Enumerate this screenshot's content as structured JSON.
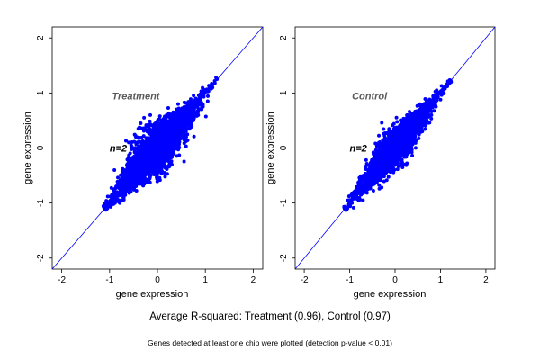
{
  "figure": {
    "caption": "Average R-squared: Treatment (0.96), Control (0.97)",
    "footnote": "Genes detected at least one chip were plotted (detection p-value < 0.01)"
  },
  "colors": {
    "points": "#0000ff",
    "diagonal": "#0000ff",
    "panel_label": "#5a5a5a",
    "axes": "#000000"
  },
  "chart_data": [
    {
      "type": "scatter",
      "title": "",
      "panel_label": "Treatment",
      "n_label": "n=2",
      "xlabel": "gene expression",
      "ylabel": "gene expression",
      "xlim": [
        -2.2,
        2.2
      ],
      "ylim": [
        -2.2,
        2.2
      ],
      "xticks": [
        "-2",
        "-1",
        "0",
        "1",
        "2"
      ],
      "yticks": [
        "-2",
        "-1",
        "0",
        "1",
        "2"
      ],
      "grid": false,
      "reference_line": {
        "slope": 1,
        "intercept": 0
      },
      "point_cloud": {
        "x_range": [
          -1.1,
          1.25
        ],
        "y_range": [
          -1.1,
          1.22
        ],
        "spread_sd": 0.13,
        "center": [
          0,
          0
        ]
      },
      "points": [
        [
          -1.08,
          -1.09
        ],
        [
          -1.05,
          -1.1
        ],
        [
          -0.98,
          -0.95
        ],
        [
          -0.92,
          -1.02
        ],
        [
          -0.9,
          -0.86
        ],
        [
          -0.85,
          -0.7
        ],
        [
          -0.8,
          -0.95
        ],
        [
          -0.75,
          -0.55
        ],
        [
          -0.72,
          -0.85
        ],
        [
          -0.7,
          -0.4
        ],
        [
          -0.65,
          -0.78
        ],
        [
          -0.6,
          -0.25
        ],
        [
          -0.58,
          -0.7
        ],
        [
          -0.55,
          0.05
        ],
        [
          -0.5,
          -0.6
        ],
        [
          -0.45,
          0.2
        ],
        [
          -0.42,
          -0.5
        ],
        [
          -0.4,
          0.35
        ],
        [
          -0.38,
          -0.62
        ],
        [
          -0.35,
          0.45
        ],
        [
          -0.3,
          -0.4
        ],
        [
          -0.28,
          0.55
        ],
        [
          -0.25,
          -0.45
        ],
        [
          -0.2,
          0.3
        ],
        [
          -0.18,
          -0.35
        ],
        [
          -0.15,
          0.6
        ],
        [
          -0.1,
          -0.3
        ],
        [
          -0.05,
          0.2
        ],
        [
          0.0,
          -0.25
        ],
        [
          0.0,
          0.02
        ],
        [
          0.05,
          0.4
        ],
        [
          0.1,
          -0.2
        ],
        [
          0.12,
          0.5
        ],
        [
          0.15,
          -0.1
        ],
        [
          0.2,
          0.45
        ],
        [
          0.25,
          -0.15
        ],
        [
          0.3,
          0.6
        ],
        [
          0.35,
          0.05
        ],
        [
          0.4,
          0.55
        ],
        [
          0.45,
          0.1
        ],
        [
          0.5,
          0.7
        ],
        [
          0.55,
          0.3
        ],
        [
          0.6,
          0.75
        ],
        [
          0.65,
          0.35
        ],
        [
          0.7,
          0.85
        ],
        [
          0.75,
          0.5
        ],
        [
          0.8,
          0.9
        ],
        [
          0.85,
          0.6
        ],
        [
          0.9,
          0.95
        ],
        [
          0.95,
          0.75
        ],
        [
          1.0,
          1.02
        ],
        [
          1.05,
          0.85
        ],
        [
          1.1,
          1.12
        ],
        [
          1.15,
          1.1
        ],
        [
          1.2,
          1.18
        ],
        [
          -0.9,
          -0.4
        ],
        [
          -0.6,
          0.1
        ],
        [
          -0.3,
          0.1
        ],
        [
          0.3,
          -0.3
        ],
        [
          0.6,
          0.2
        ]
      ]
    },
    {
      "type": "scatter",
      "title": "",
      "panel_label": "Control",
      "n_label": "n=2",
      "xlabel": "gene expression",
      "ylabel": "gene expression",
      "xlim": [
        -2.2,
        2.2
      ],
      "ylim": [
        -2.2,
        2.2
      ],
      "xticks": [
        "-2",
        "-1",
        "0",
        "1",
        "2"
      ],
      "yticks": [
        "-2",
        "-1",
        "0",
        "1",
        "2"
      ],
      "grid": false,
      "reference_line": {
        "slope": 1,
        "intercept": 0
      },
      "point_cloud": {
        "x_range": [
          -1.1,
          1.22
        ],
        "y_range": [
          -1.1,
          1.2
        ],
        "spread_sd": 0.1,
        "center": [
          0,
          0
        ]
      },
      "points": [
        [
          -1.08,
          -1.08
        ],
        [
          -1.05,
          -1.1
        ],
        [
          -1.0,
          -0.95
        ],
        [
          -0.95,
          -1.0
        ],
        [
          -0.9,
          -0.8
        ],
        [
          -0.85,
          -0.92
        ],
        [
          -0.8,
          -0.65
        ],
        [
          -0.75,
          -0.85
        ],
        [
          -0.7,
          -0.5
        ],
        [
          -0.65,
          -0.8
        ],
        [
          -0.6,
          -0.4
        ],
        [
          -0.55,
          -0.7
        ],
        [
          -0.5,
          -0.3
        ],
        [
          -0.45,
          -0.6
        ],
        [
          -0.4,
          -0.2
        ],
        [
          -0.35,
          -0.5
        ],
        [
          -0.3,
          -0.1
        ],
        [
          -0.25,
          -0.4
        ],
        [
          -0.2,
          0.05
        ],
        [
          -0.15,
          -0.3
        ],
        [
          -0.1,
          0.15
        ],
        [
          -0.05,
          -0.2
        ],
        [
          0.0,
          0.0
        ],
        [
          0.05,
          0.25
        ],
        [
          0.1,
          -0.1
        ],
        [
          0.15,
          0.35
        ],
        [
          0.2,
          0.0
        ],
        [
          0.25,
          0.45
        ],
        [
          0.3,
          0.1
        ],
        [
          0.35,
          0.5
        ],
        [
          0.4,
          0.2
        ],
        [
          0.45,
          0.6
        ],
        [
          0.5,
          0.3
        ],
        [
          0.55,
          0.7
        ],
        [
          0.6,
          0.4
        ],
        [
          0.65,
          0.8
        ],
        [
          0.7,
          0.5
        ],
        [
          0.75,
          0.85
        ],
        [
          0.8,
          0.6
        ],
        [
          0.85,
          0.95
        ],
        [
          0.9,
          0.75
        ],
        [
          0.95,
          1.0
        ],
        [
          1.0,
          0.88
        ],
        [
          1.05,
          1.05
        ],
        [
          1.1,
          1.08
        ],
        [
          1.15,
          1.12
        ],
        [
          1.2,
          1.18
        ]
      ]
    }
  ]
}
